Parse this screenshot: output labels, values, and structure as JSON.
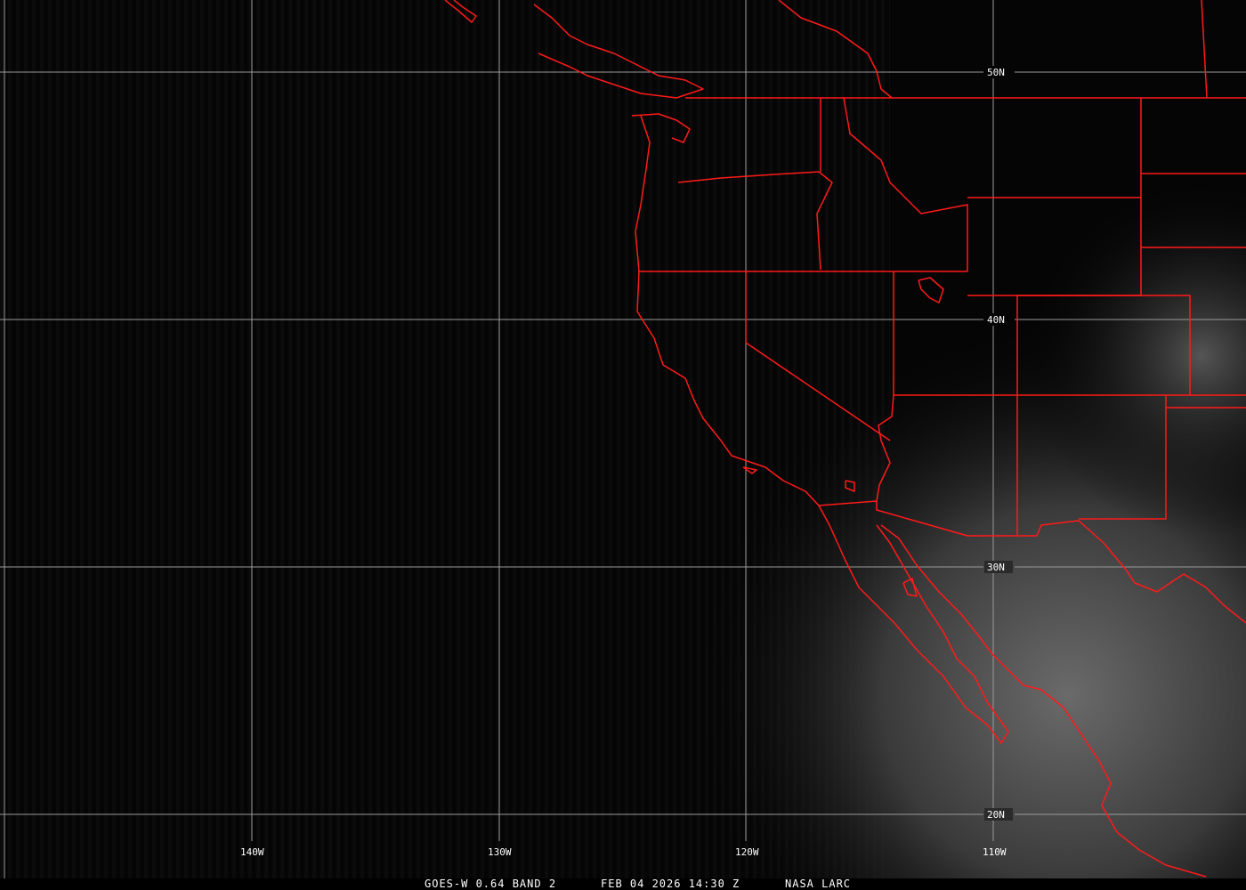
{
  "caption": {
    "satellite": "GOES-W 0.64 BAND 2",
    "datetime": "FEB 04 2026 14:30 Z",
    "source": "NASA LARC"
  },
  "grid": {
    "latitudes": [
      "50N",
      "40N",
      "30N",
      "20N"
    ],
    "longitudes": [
      "140W",
      "130W",
      "120W",
      "110W"
    ]
  },
  "colors": {
    "boundaries": "#ff1a1a",
    "gridlines": "#9a9a9a",
    "background": "#050505"
  }
}
